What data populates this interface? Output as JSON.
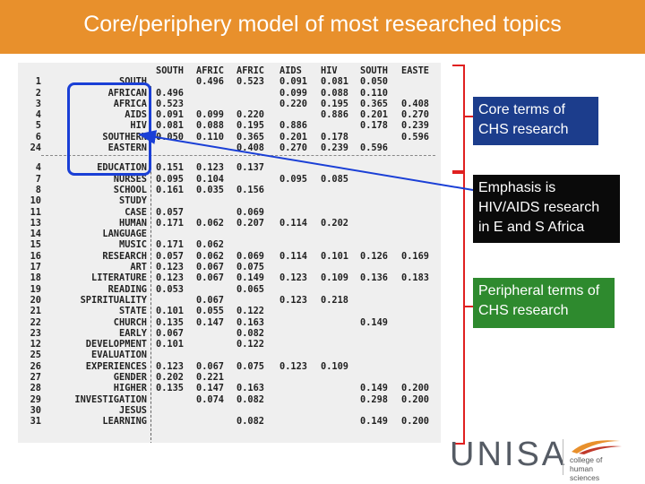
{
  "title": "Core/periphery model of most researched topics",
  "table": {
    "columns": [
      "SOUTH",
      "AFRIC",
      "AFRIC",
      "AIDS",
      "HIV",
      "SOUTH",
      "EASTE"
    ],
    "core_rows": [
      {
        "n": "1",
        "term": "SOUTH",
        "vals": [
          "",
          "0.496",
          "0.523",
          "0.091",
          "0.081",
          "0.050",
          ""
        ]
      },
      {
        "n": "2",
        "term": "AFRICAN",
        "vals": [
          "0.496",
          "",
          "",
          "0.099",
          "0.088",
          "0.110",
          ""
        ]
      },
      {
        "n": "3",
        "term": "AFRICA",
        "vals": [
          "0.523",
          "",
          "",
          "0.220",
          "0.195",
          "0.365",
          "0.408"
        ]
      },
      {
        "n": "4",
        "term": "AIDS",
        "vals": [
          "0.091",
          "0.099",
          "0.220",
          "",
          "0.886",
          "0.201",
          "0.270"
        ]
      },
      {
        "n": "5",
        "term": "HIV",
        "vals": [
          "0.081",
          "0.088",
          "0.195",
          "0.886",
          "",
          "0.178",
          "0.239"
        ]
      },
      {
        "n": "6",
        "term": "SOUTHERN",
        "vals": [
          "0.050",
          "0.110",
          "0.365",
          "0.201",
          "0.178",
          "",
          "0.596"
        ]
      },
      {
        "n": "24",
        "term": "EASTERN",
        "vals": [
          "",
          "",
          "0.408",
          "0.270",
          "0.239",
          "0.596",
          ""
        ]
      }
    ],
    "periphery_rows": [
      {
        "n": "4",
        "term": "EDUCATION",
        "vals": [
          "0.151",
          "0.123",
          "0.137",
          "",
          "",
          "",
          ""
        ]
      },
      {
        "n": "7",
        "term": "NURSES",
        "vals": [
          "0.095",
          "0.104",
          "",
          "0.095",
          "0.085",
          "",
          ""
        ]
      },
      {
        "n": "8",
        "term": "SCHOOL",
        "vals": [
          "0.161",
          "0.035",
          "0.156",
          "",
          "",
          "",
          ""
        ]
      },
      {
        "n": "10",
        "term": "STUDY",
        "vals": [
          "",
          "",
          "",
          "",
          "",
          "",
          ""
        ]
      },
      {
        "n": "11",
        "term": "CASE",
        "vals": [
          "0.057",
          "",
          "0.069",
          "",
          "",
          "",
          ""
        ]
      },
      {
        "n": "13",
        "term": "HUMAN",
        "vals": [
          "0.171",
          "0.062",
          "0.207",
          "0.114",
          "0.202",
          "",
          ""
        ]
      },
      {
        "n": "14",
        "term": "LANGUAGE",
        "vals": [
          "",
          "",
          "",
          "",
          "",
          "",
          ""
        ]
      },
      {
        "n": "15",
        "term": "MUSIC",
        "vals": [
          "0.171",
          "0.062",
          "",
          "",
          "",
          "",
          ""
        ]
      },
      {
        "n": "16",
        "term": "RESEARCH",
        "vals": [
          "0.057",
          "0.062",
          "0.069",
          "0.114",
          "0.101",
          "0.126",
          "0.169"
        ]
      },
      {
        "n": "17",
        "term": "ART",
        "vals": [
          "0.123",
          "0.067",
          "0.075",
          "",
          "",
          "",
          ""
        ]
      },
      {
        "n": "18",
        "term": "LITERATURE",
        "vals": [
          "0.123",
          "0.067",
          "0.149",
          "0.123",
          "0.109",
          "0.136",
          "0.183"
        ]
      },
      {
        "n": "19",
        "term": "READING",
        "vals": [
          "0.053",
          "",
          "0.065",
          "",
          "",
          "",
          ""
        ]
      },
      {
        "n": "20",
        "term": "SPIRITUALITY",
        "vals": [
          "",
          "0.067",
          "",
          "0.123",
          "0.218",
          "",
          ""
        ]
      },
      {
        "n": "21",
        "term": "STATE",
        "vals": [
          "0.101",
          "0.055",
          "0.122",
          "",
          "",
          "",
          ""
        ]
      },
      {
        "n": "22",
        "term": "CHURCH",
        "vals": [
          "0.135",
          "0.147",
          "0.163",
          "",
          "",
          "0.149",
          ""
        ]
      },
      {
        "n": "23",
        "term": "EARLY",
        "vals": [
          "0.067",
          "",
          "0.082",
          "",
          "",
          "",
          ""
        ]
      },
      {
        "n": "12",
        "term": "DEVELOPMENT",
        "vals": [
          "0.101",
          "",
          "0.122",
          "",
          "",
          "",
          ""
        ]
      },
      {
        "n": "25",
        "term": "EVALUATION",
        "vals": [
          "",
          "",
          "",
          "",
          "",
          "",
          ""
        ]
      },
      {
        "n": "26",
        "term": "EXPERIENCES",
        "vals": [
          "0.123",
          "0.067",
          "0.075",
          "0.123",
          "0.109",
          "",
          ""
        ]
      },
      {
        "n": "27",
        "term": "GENDER",
        "vals": [
          "0.202",
          "0.221",
          "",
          "",
          "",
          "",
          ""
        ]
      },
      {
        "n": "28",
        "term": "HIGHER",
        "vals": [
          "0.135",
          "0.147",
          "0.163",
          "",
          "",
          "0.149",
          "0.200"
        ]
      },
      {
        "n": "29",
        "term": "INVESTIGATION",
        "vals": [
          "",
          "0.074",
          "0.082",
          "",
          "",
          "0.298",
          "0.200"
        ]
      },
      {
        "n": "30",
        "term": "JESUS",
        "vals": [
          "",
          "",
          "",
          "",
          "",
          "",
          ""
        ]
      },
      {
        "n": "31",
        "term": "LEARNING",
        "vals": [
          "",
          "",
          "0.082",
          "",
          "",
          "0.149",
          "0.200"
        ]
      }
    ]
  },
  "callouts": {
    "core": "Core terms of CHS research",
    "emphasis": "Emphasis is HIV/AIDS research in E and S Africa",
    "periphery": "Peripheral terms of CHS research"
  },
  "colors": {
    "header": "#e8902c",
    "core_box": "#1a3fd6",
    "bracket": "#e02020",
    "callout_core": "#1c3d8c",
    "callout_emphasis": "#0a0a0a",
    "callout_periphery": "#2e8a2e"
  },
  "logo": {
    "name": "UNISA",
    "subtitle": "college of human sciences"
  }
}
